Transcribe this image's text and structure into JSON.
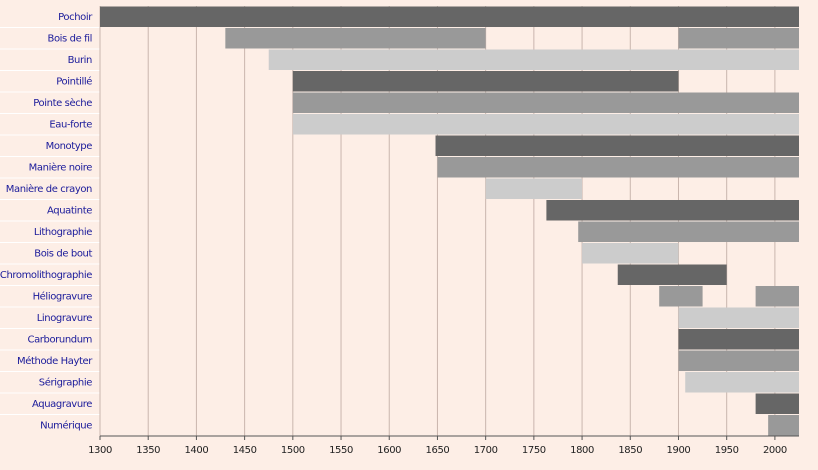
{
  "chart_data": {
    "type": "timeline",
    "categories": [
      "Pochoir",
      "Bois de fil",
      "Burin",
      "Pointillé",
      "Pointe sèche",
      "Eau-forte",
      "Monotype",
      "Manière noire",
      "Manière de crayon",
      "Aquatinte",
      "Lithographie",
      "Bois de bout",
      "Chromolithographie",
      "Héliogravure",
      "Linogravure",
      "Carborundum",
      "Méthode Hayter",
      "Sérigraphie",
      "Aquagravure",
      "Numérique"
    ],
    "spans": [
      [
        {
          "start": 1300,
          "end": 2025,
          "color": "#666666"
        }
      ],
      [
        {
          "start": 1430,
          "end": 1700,
          "color": "#999999"
        },
        {
          "start": 1900,
          "end": 2025,
          "color": "#999999"
        }
      ],
      [
        {
          "start": 1475,
          "end": 2025,
          "color": "#cccccc"
        }
      ],
      [
        {
          "start": 1500,
          "end": 1900,
          "color": "#666666"
        }
      ],
      [
        {
          "start": 1500,
          "end": 2025,
          "color": "#999999"
        }
      ],
      [
        {
          "start": 1500,
          "end": 2025,
          "color": "#cccccc"
        }
      ],
      [
        {
          "start": 1648,
          "end": 2025,
          "color": "#666666"
        }
      ],
      [
        {
          "start": 1650,
          "end": 2025,
          "color": "#999999"
        }
      ],
      [
        {
          "start": 1700,
          "end": 1800,
          "color": "#cccccc"
        }
      ],
      [
        {
          "start": 1763,
          "end": 2025,
          "color": "#666666"
        }
      ],
      [
        {
          "start": 1796,
          "end": 2025,
          "color": "#999999"
        }
      ],
      [
        {
          "start": 1800,
          "end": 1900,
          "color": "#cccccc"
        }
      ],
      [
        {
          "start": 1837,
          "end": 1950,
          "color": "#666666"
        }
      ],
      [
        {
          "start": 1880,
          "end": 1925,
          "color": "#999999"
        },
        {
          "start": 1980,
          "end": 2025,
          "color": "#999999"
        }
      ],
      [
        {
          "start": 1900,
          "end": 2025,
          "color": "#cccccc"
        }
      ],
      [
        {
          "start": 1900,
          "end": 2025,
          "color": "#666666"
        }
      ],
      [
        {
          "start": 1900,
          "end": 2025,
          "color": "#999999"
        }
      ],
      [
        {
          "start": 1907,
          "end": 2025,
          "color": "#cccccc"
        }
      ],
      [
        {
          "start": 1980,
          "end": 2025,
          "color": "#666666"
        }
      ],
      [
        {
          "start": 1993,
          "end": 2025,
          "color": "#999999"
        }
      ]
    ],
    "xlim": [
      1300,
      2025
    ],
    "xticks": [
      1300,
      1350,
      1400,
      1450,
      1500,
      1550,
      1600,
      1650,
      1700,
      1750,
      1800,
      1850,
      1900,
      1950,
      2000
    ],
    "grid": true
  }
}
